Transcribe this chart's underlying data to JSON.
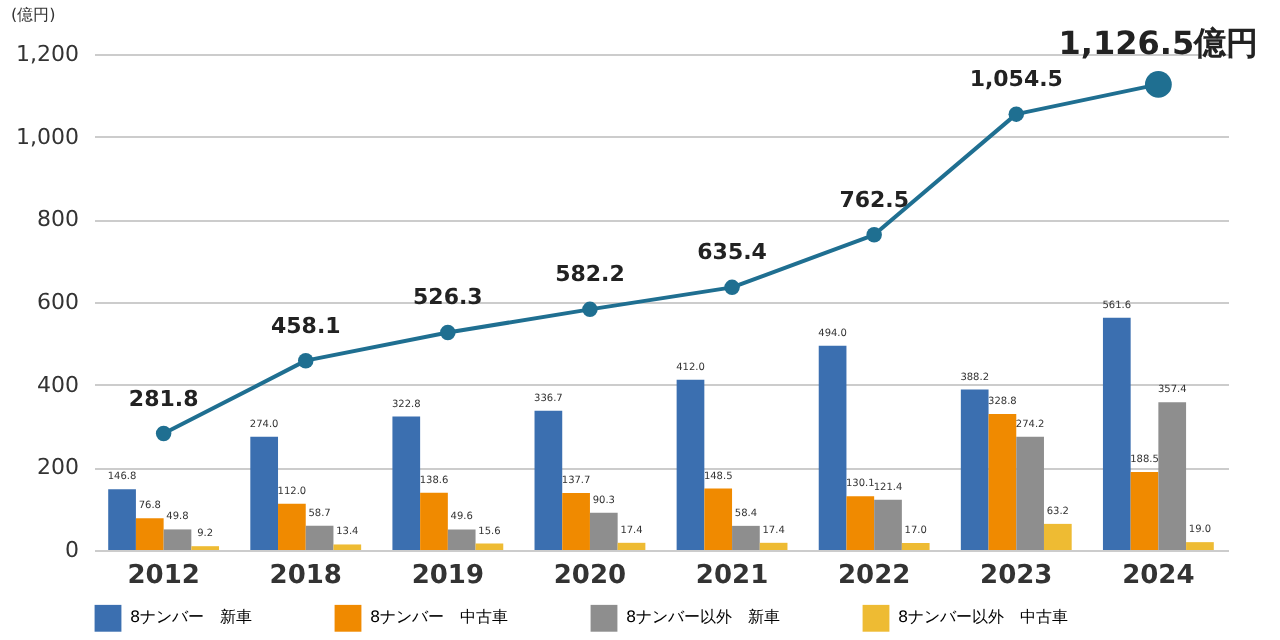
{
  "chart_data": {
    "type": "bar",
    "ylabel": "(億円)",
    "categories": [
      "2012",
      "2018",
      "2019",
      "2020",
      "2021",
      "2022",
      "2023",
      "2024"
    ],
    "series": [
      {
        "name": "8ナンバー　新車",
        "color": "#3b6fb0",
        "values": [
          146.8,
          274.0,
          322.8,
          336.7,
          412.0,
          494.0,
          388.2,
          561.6
        ],
        "value_labels": [
          "146.8",
          "274.0",
          "322.8",
          "336.7",
          "412.0",
          "494.0",
          "388.2",
          "561.6"
        ]
      },
      {
        "name": "8ナンバー　中古車",
        "color": "#f08a00",
        "values": [
          76.8,
          112.0,
          138.6,
          137.7,
          148.5,
          130.1,
          328.8,
          188.5
        ],
        "value_labels": [
          "76.8",
          "112.0",
          "138.6",
          "137.7",
          "148.5",
          "130.1",
          "328.8",
          "188.5"
        ]
      },
      {
        "name": "8ナンバー以外　新車",
        "color": "#8e8e8e",
        "values": [
          49.8,
          58.7,
          49.6,
          90.3,
          58.4,
          121.4,
          274.2,
          357.4
        ],
        "value_labels": [
          "49.8",
          "58.7",
          "49.6",
          "90.3",
          "58.4",
          "121.4",
          "274.2",
          "357.4"
        ]
      },
      {
        "name": "8ナンバー以外　中古車",
        "color": "#eebb33",
        "values": [
          9.2,
          13.4,
          15.6,
          17.4,
          17.4,
          17.0,
          63.2,
          19.0
        ],
        "value_labels": [
          "9.2",
          "13.4",
          "15.6",
          "17.4",
          "17.4",
          "17.0",
          "63.2",
          "19.0"
        ]
      },
      {
        "type": "line",
        "color": "#1f6f91",
        "marker": "circle",
        "line_style": "solid",
        "values": [
          281.8,
          458.1,
          526.3,
          582.2,
          635.4,
          762.5,
          1054.5,
          1126.5
        ],
        "value_labels": [
          "281.8",
          "458.1",
          "526.3",
          "582.2",
          "635.4",
          "762.5",
          "1,054.5",
          "1,126.5億円"
        ]
      }
    ],
    "ylim": [
      0,
      1200
    ],
    "yticks": [
      0,
      200,
      400,
      600,
      800,
      {
        "value": 1000,
        "label": "1,000"
      },
      {
        "value": 1200,
        "label": "1,200"
      }
    ],
    "grid": "y",
    "legend": "bottom"
  }
}
